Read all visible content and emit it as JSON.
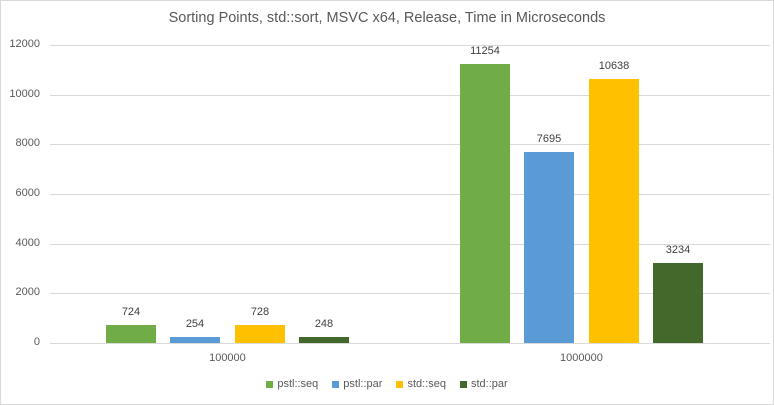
{
  "chart_data": {
    "type": "bar",
    "title": "Sorting  Points, std::sort, MSVC x64, Release, Time in Microseconds",
    "xlabel": "",
    "ylabel": "",
    "categories": [
      "100000",
      "1000000"
    ],
    "series": [
      {
        "name": "pstl::seq",
        "color": "#70ad47",
        "values": [
          724,
          11254
        ]
      },
      {
        "name": "pstl::par",
        "color": "#5b9bd5",
        "values": [
          254,
          7695
        ]
      },
      {
        "name": "std::seq",
        "color": "#ffc000",
        "values": [
          728,
          10638
        ]
      },
      {
        "name": "std::par",
        "color": "#43682b",
        "values": [
          248,
          3234
        ]
      }
    ],
    "ylim": [
      0,
      12000
    ],
    "yticks": [
      "0",
      "2000",
      "4000",
      "6000",
      "8000",
      "10000",
      "12000"
    ],
    "grid": true,
    "legend_position": "bottom",
    "data_labels": true
  }
}
